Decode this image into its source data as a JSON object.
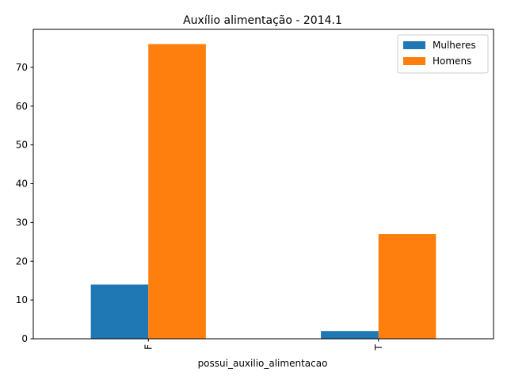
{
  "chart_data": {
    "type": "bar",
    "title": "Auxílio alimentação - 2014.1",
    "xlabel": "possui_auxilio_alimentacao",
    "ylabel": "",
    "categories": [
      "F",
      "T"
    ],
    "series": [
      {
        "name": "Mulheres",
        "values": [
          14,
          2
        ],
        "color": "#1f77b4"
      },
      {
        "name": "Homens",
        "values": [
          76,
          27
        ],
        "color": "#ff7f0e"
      }
    ],
    "ylim": [
      0,
      79.8
    ],
    "yticks": [
      0,
      10,
      20,
      30,
      40,
      50,
      60,
      70
    ],
    "grid": false,
    "legend_position": "top-right"
  }
}
